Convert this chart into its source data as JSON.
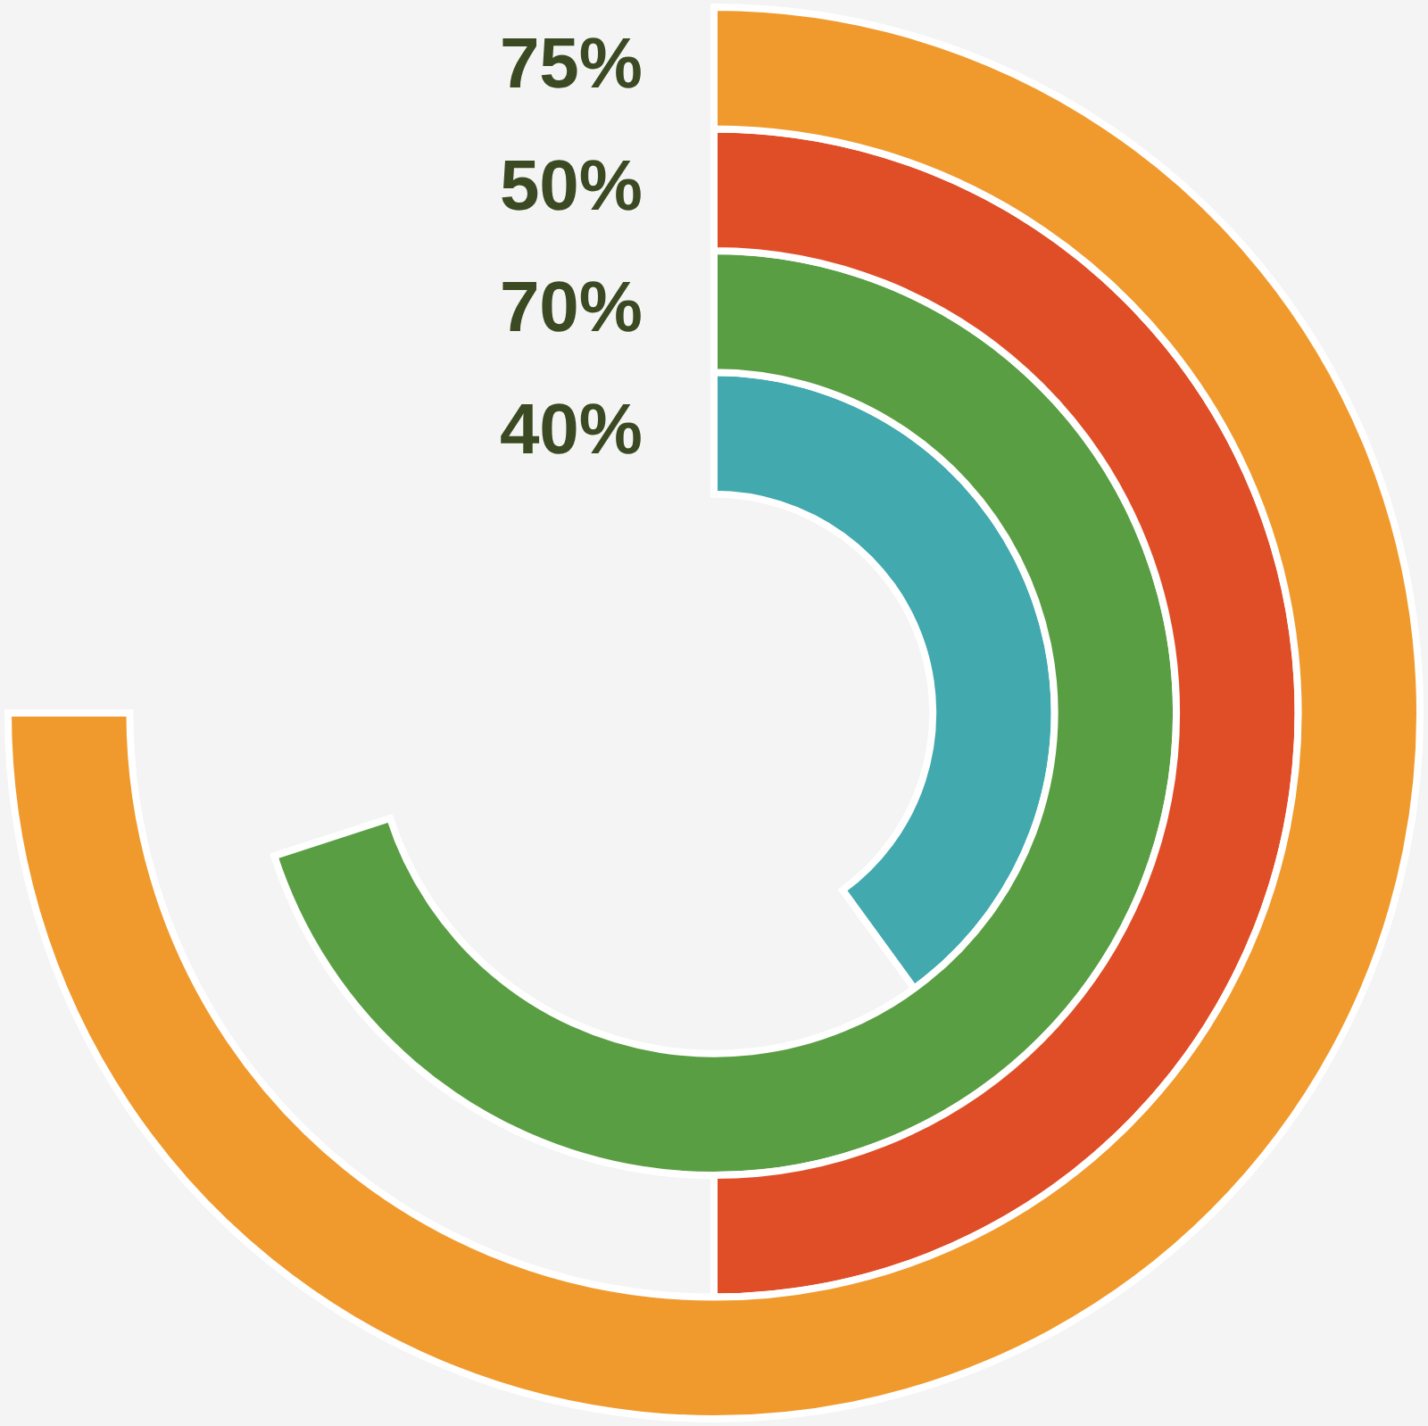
{
  "chart_data": {
    "type": "other",
    "categories": [
      null,
      null,
      null,
      null
    ],
    "values": [
      75,
      50,
      70,
      40
    ],
    "colors": [
      "#f09a2e",
      "#e04e28",
      "#5a9e44",
      "#42a9ae"
    ],
    "value_labels": [
      "75%",
      "50%",
      "70%",
      "40%"
    ]
  }
}
